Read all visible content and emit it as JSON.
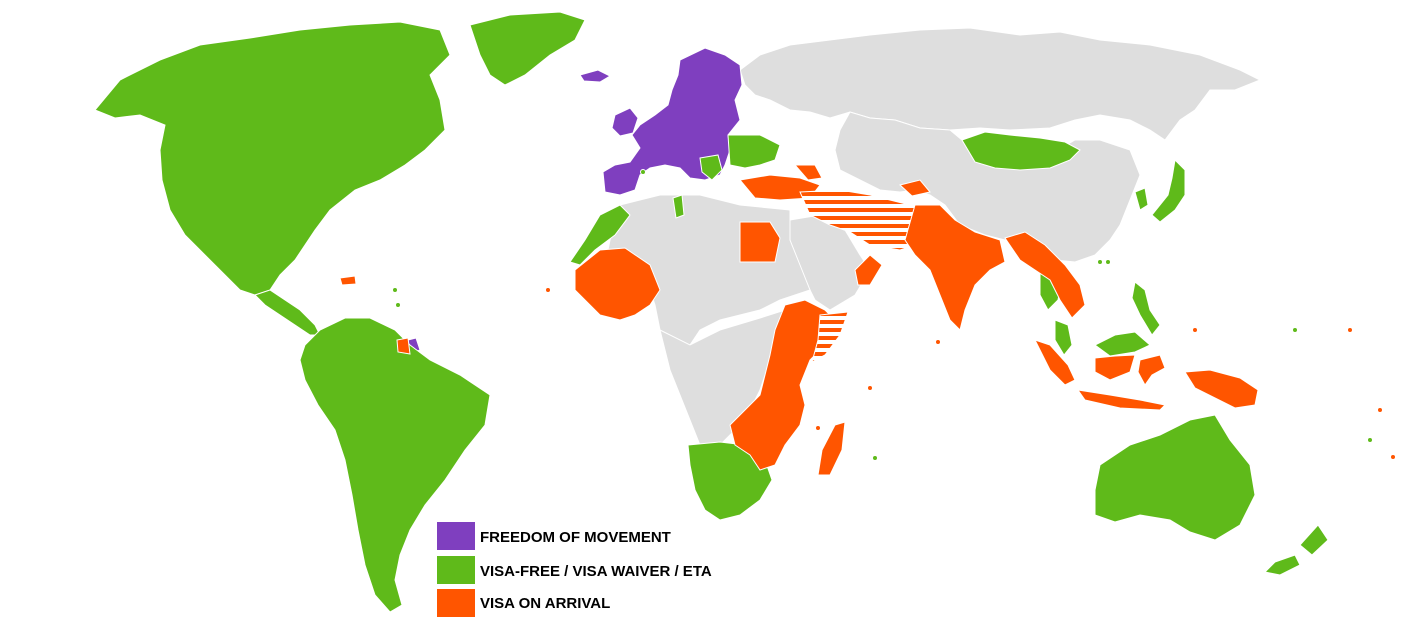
{
  "legend": [
    {
      "key": "freedom",
      "label": "FREEDOM OF MOVEMENT",
      "color": "#7f3fbf"
    },
    {
      "key": "visafree",
      "label": "VISA-FREE / VISA WAIVER / ETA",
      "color": "#5fba1a"
    },
    {
      "key": "arrival",
      "label": "VISA ON ARRIVAL",
      "color": "#ff5500"
    }
  ],
  "colors": {
    "no_access": "#dedede",
    "border": "#ffffff",
    "background": "#ffffff",
    "hatch_stripe": "#ffffff"
  }
}
